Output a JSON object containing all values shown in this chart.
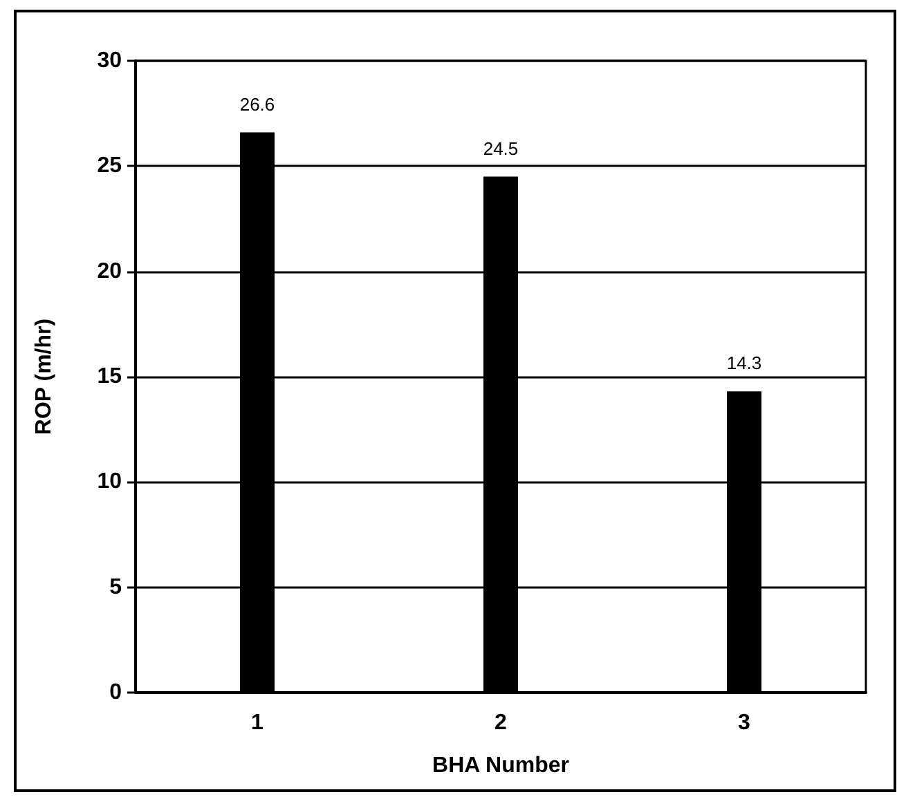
{
  "chart_data": {
    "type": "bar",
    "xlabel": "BHA Number",
    "ylabel": "ROP (m/hr)",
    "categories": [
      "1",
      "2",
      "3"
    ],
    "values": [
      26.6,
      24.5,
      14.3
    ],
    "color": "#000000",
    "ylim": [
      0,
      30
    ],
    "yticks": [
      0,
      5,
      10,
      15,
      20,
      25,
      30
    ],
    "grid": "y",
    "data_labels": true
  }
}
